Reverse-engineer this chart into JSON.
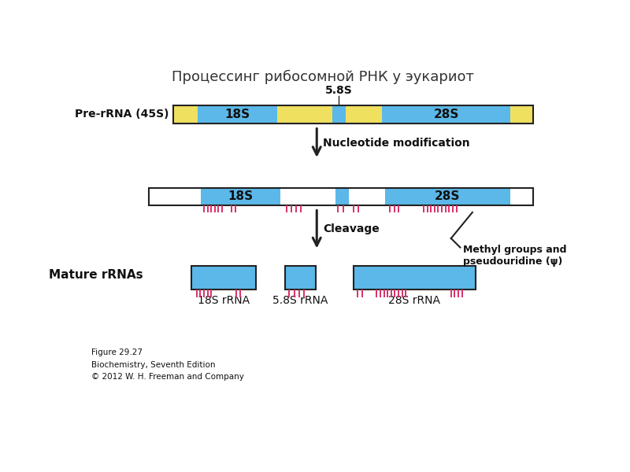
{
  "title": "Процессинг рибосомной РНК у эукариот",
  "title_fontsize": 13,
  "background_color": "#ffffff",
  "yellow_color": "#f0e060",
  "blue_color": "#5bb8e8",
  "white_color": "#ffffff",
  "pink_color": "#e8507a",
  "border_color": "#222222",
  "label_pre_rrna": "Pre-rRNA (45S)",
  "label_mature": "Mature rRNAs",
  "label_58s": "5.8S",
  "label_18s": "18S",
  "label_28s": "28S",
  "label_nuc_mod": "Nucleotide modification",
  "label_cleavage": "Cleavage",
  "label_methyl": "Methyl groups and\npseudouridine (ψ)",
  "label_18s_rrna": "18S rRNA",
  "label_58s_rrna": "5.8S rRNA",
  "label_28s_rrna": "28S rRNA",
  "figure_text": "Figure 29.27\nBiochemistry, Seventh Edition\n© 2012 W. H. Freeman and Company"
}
